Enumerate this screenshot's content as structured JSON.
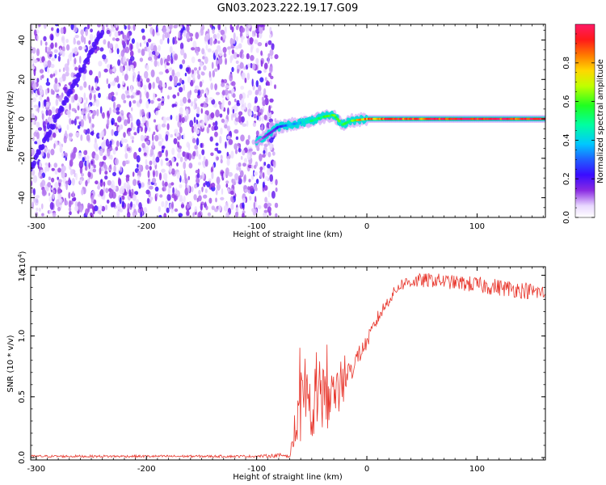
{
  "title": "GN03.2023.222.19.17.G09",
  "chart_data": [
    {
      "type": "heatmap",
      "xlabel": "Height of straight line (km)",
      "ylabel": "Frequency (Hz)",
      "xlim": [
        -305,
        162
      ],
      "ylim": [
        -50,
        48
      ],
      "xticks": [
        -300,
        -200,
        -100,
        0,
        100
      ],
      "yticks": [
        -40,
        -20,
        0,
        20,
        40
      ],
      "grid": false,
      "colorbar": {
        "label": "Normalized spectral amplitude",
        "range": [
          0.0,
          1.0
        ],
        "ticks": [
          0.0,
          0.2,
          0.4,
          0.6,
          0.8
        ],
        "colormap": "white-purple-blue-cyan-green-yellow-red-magenta"
      },
      "noise_region_x": [
        -305,
        -82
      ],
      "signal_track": [
        {
          "x": -100,
          "y": -12,
          "amp": 0.1
        },
        {
          "x": -90,
          "y": -8,
          "amp": 0.15
        },
        {
          "x": -80,
          "y": -4,
          "amp": 0.22
        },
        {
          "x": -70,
          "y": -3,
          "amp": 0.35
        },
        {
          "x": -60,
          "y": -2,
          "amp": 0.4
        },
        {
          "x": -50,
          "y": -1,
          "amp": 0.5
        },
        {
          "x": -40,
          "y": 1,
          "amp": 0.55
        },
        {
          "x": -30,
          "y": 2,
          "amp": 0.6
        },
        {
          "x": -22,
          "y": -3,
          "amp": 0.55
        },
        {
          "x": -15,
          "y": -1,
          "amp": 0.6
        },
        {
          "x": 0,
          "y": 0,
          "amp": 0.85
        },
        {
          "x": 30,
          "y": 0,
          "amp": 0.9
        },
        {
          "x": 60,
          "y": 0,
          "amp": 0.92
        },
        {
          "x": 100,
          "y": 0,
          "amp": 0.95
        },
        {
          "x": 162,
          "y": 0,
          "amp": 0.95
        }
      ],
      "drift_streak": {
        "x": [
          -305,
          -240
        ],
        "y": [
          -25,
          45
        ]
      }
    },
    {
      "type": "line",
      "xlabel": "Height of straight line (km)",
      "ylabel": "SNR (10 * v/v)",
      "y_multiplier": "(x10",
      "y_multiplier_exp": "4",
      "y_multiplier_close": ")",
      "xlim": [
        -305,
        162
      ],
      "ylim": [
        -0.02,
        1.57
      ],
      "xticks": [
        -300,
        -200,
        -100,
        0,
        100
      ],
      "yticks": [
        0.0,
        0.5,
        1.0,
        1.5
      ],
      "ytick_labels": [
        "0.0",
        "0.5",
        "1.0",
        "1.5"
      ],
      "grid": false,
      "color": "#e8382e",
      "series": [
        {
          "x": [
            -305,
            -100,
            -70,
            -65,
            -60,
            -55,
            -50,
            -45,
            -40,
            -35,
            -30,
            -25,
            -20,
            -15,
            -10,
            0,
            10,
            20,
            30,
            40,
            60,
            80,
            100,
            120,
            140,
            162
          ],
          "y": [
            0.01,
            0.01,
            0.02,
            0.18,
            0.35,
            0.4,
            0.45,
            0.42,
            0.5,
            0.45,
            0.55,
            0.5,
            0.58,
            0.7,
            0.8,
            0.95,
            1.15,
            1.3,
            1.42,
            1.45,
            1.46,
            1.44,
            1.42,
            1.4,
            1.38,
            1.35
          ]
        }
      ],
      "noise_amplitude_y": [
        0.01,
        0.01,
        0.02,
        0.2,
        0.28,
        0.3,
        0.3,
        0.3,
        0.25,
        0.22,
        0.18,
        0.15,
        0.12,
        0.1,
        0.08,
        0.06,
        0.06,
        0.05,
        0.05,
        0.06,
        0.06,
        0.06,
        0.07,
        0.07,
        0.07,
        0.07
      ]
    }
  ]
}
